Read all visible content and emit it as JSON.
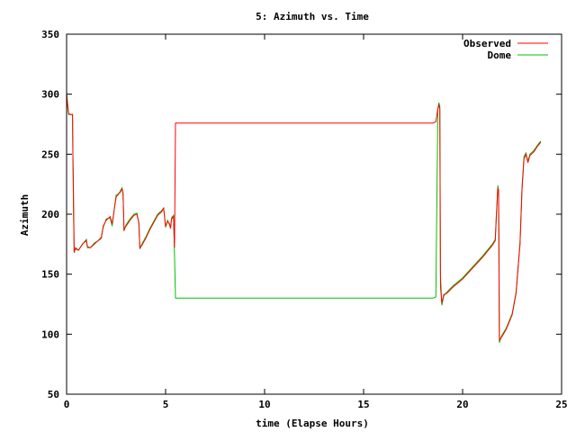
{
  "chart_data": {
    "type": "line",
    "title": "5: Azimuth vs. Time",
    "xlabel": "time (Elapse Hours)",
    "ylabel": "Azimuth",
    "xlim": [
      0,
      25
    ],
    "ylim": [
      50,
      350
    ],
    "xticks": [
      0,
      5,
      10,
      15,
      20,
      25
    ],
    "yticks": [
      50,
      100,
      150,
      200,
      250,
      300,
      350
    ],
    "grid": false,
    "legend_position": "top-right",
    "series": [
      {
        "name": "Observed",
        "color": "#ff0000",
        "points": [
          [
            0.0,
            300
          ],
          [
            0.05,
            292
          ],
          [
            0.1,
            284
          ],
          [
            0.2,
            283
          ],
          [
            0.3,
            283
          ],
          [
            0.32,
            250
          ],
          [
            0.35,
            215
          ],
          [
            0.38,
            168
          ],
          [
            0.45,
            172
          ],
          [
            0.6,
            170
          ],
          [
            0.8,
            175
          ],
          [
            1.0,
            178
          ],
          [
            1.05,
            173
          ],
          [
            1.2,
            172
          ],
          [
            1.4,
            175
          ],
          [
            1.6,
            178
          ],
          [
            1.75,
            180
          ],
          [
            1.85,
            190
          ],
          [
            2.0,
            195
          ],
          [
            2.2,
            198
          ],
          [
            2.3,
            192
          ],
          [
            2.5,
            214
          ],
          [
            2.6,
            217
          ],
          [
            2.7,
            218
          ],
          [
            2.8,
            221
          ],
          [
            2.85,
            218
          ],
          [
            2.9,
            187
          ],
          [
            3.0,
            190
          ],
          [
            3.2,
            195
          ],
          [
            3.4,
            199
          ],
          [
            3.55,
            200
          ],
          [
            3.65,
            193
          ],
          [
            3.7,
            172
          ],
          [
            3.8,
            174
          ],
          [
            4.0,
            180
          ],
          [
            4.2,
            187
          ],
          [
            4.4,
            193
          ],
          [
            4.6,
            199
          ],
          [
            4.8,
            202
          ],
          [
            4.9,
            205
          ],
          [
            4.95,
            198
          ],
          [
            5.0,
            190
          ],
          [
            5.1,
            194
          ],
          [
            5.2,
            192
          ],
          [
            5.25,
            188
          ],
          [
            5.3,
            196
          ],
          [
            5.4,
            198
          ],
          [
            5.45,
            172
          ],
          [
            5.5,
            276
          ],
          [
            6.0,
            276
          ],
          [
            10.0,
            276
          ],
          [
            15.0,
            276
          ],
          [
            18.5,
            276
          ],
          [
            18.65,
            277
          ],
          [
            18.75,
            288
          ],
          [
            18.8,
            291
          ],
          [
            18.85,
            288
          ],
          [
            18.88,
            140
          ],
          [
            18.95,
            126
          ],
          [
            19.05,
            133
          ],
          [
            19.2,
            134
          ],
          [
            19.5,
            139
          ],
          [
            20.0,
            146
          ],
          [
            20.5,
            155
          ],
          [
            21.0,
            164
          ],
          [
            21.5,
            174
          ],
          [
            21.65,
            178
          ],
          [
            21.7,
            196
          ],
          [
            21.78,
            222
          ],
          [
            21.82,
            220
          ],
          [
            21.86,
            95
          ],
          [
            21.95,
            97
          ],
          [
            22.2,
            104
          ],
          [
            22.5,
            116
          ],
          [
            22.7,
            134
          ],
          [
            22.9,
            175
          ],
          [
            23.0,
            220
          ],
          [
            23.1,
            246
          ],
          [
            23.2,
            250
          ],
          [
            23.3,
            243
          ],
          [
            23.4,
            249
          ],
          [
            23.6,
            252
          ],
          [
            23.8,
            257
          ],
          [
            23.95,
            260
          ]
        ]
      },
      {
        "name": "Dome",
        "color": "#00c000",
        "points": [
          [
            0.0,
            302
          ],
          [
            0.05,
            290
          ],
          [
            0.1,
            283
          ],
          [
            0.2,
            283
          ],
          [
            0.3,
            283
          ],
          [
            0.32,
            248
          ],
          [
            0.35,
            200
          ],
          [
            0.38,
            169
          ],
          [
            0.45,
            171
          ],
          [
            0.6,
            170
          ],
          [
            0.8,
            175
          ],
          [
            1.0,
            179
          ],
          [
            1.05,
            172
          ],
          [
            1.2,
            172
          ],
          [
            1.4,
            176
          ],
          [
            1.6,
            178
          ],
          [
            1.75,
            181
          ],
          [
            1.85,
            189
          ],
          [
            2.0,
            196
          ],
          [
            2.2,
            197
          ],
          [
            2.3,
            190
          ],
          [
            2.5,
            216
          ],
          [
            2.6,
            216
          ],
          [
            2.7,
            219
          ],
          [
            2.8,
            222
          ],
          [
            2.85,
            217
          ],
          [
            2.9,
            186
          ],
          [
            3.0,
            191
          ],
          [
            3.2,
            196
          ],
          [
            3.4,
            200
          ],
          [
            3.55,
            201
          ],
          [
            3.65,
            192
          ],
          [
            3.7,
            171
          ],
          [
            3.8,
            175
          ],
          [
            4.0,
            181
          ],
          [
            4.2,
            188
          ],
          [
            4.4,
            194
          ],
          [
            4.6,
            200
          ],
          [
            4.8,
            203
          ],
          [
            4.9,
            205
          ],
          [
            4.95,
            197
          ],
          [
            5.0,
            189
          ],
          [
            5.1,
            195
          ],
          [
            5.2,
            191
          ],
          [
            5.25,
            189
          ],
          [
            5.3,
            197
          ],
          [
            5.4,
            199
          ],
          [
            5.45,
            166
          ],
          [
            5.5,
            130
          ],
          [
            6.0,
            130
          ],
          [
            10.0,
            130
          ],
          [
            15.0,
            130
          ],
          [
            18.5,
            130
          ],
          [
            18.65,
            131
          ],
          [
            18.75,
            287
          ],
          [
            18.8,
            293
          ],
          [
            18.85,
            290
          ],
          [
            18.88,
            150
          ],
          [
            18.95,
            124
          ],
          [
            19.05,
            132
          ],
          [
            19.2,
            135
          ],
          [
            19.5,
            140
          ],
          [
            20.0,
            147
          ],
          [
            20.5,
            156
          ],
          [
            21.0,
            165
          ],
          [
            21.5,
            175
          ],
          [
            21.65,
            179
          ],
          [
            21.7,
            198
          ],
          [
            21.78,
            224
          ],
          [
            21.82,
            218
          ],
          [
            21.86,
            93
          ],
          [
            21.95,
            98
          ],
          [
            22.2,
            105
          ],
          [
            22.5,
            117
          ],
          [
            22.7,
            135
          ],
          [
            22.9,
            176
          ],
          [
            23.0,
            222
          ],
          [
            23.1,
            248
          ],
          [
            23.2,
            251
          ],
          [
            23.3,
            244
          ],
          [
            23.4,
            250
          ],
          [
            23.6,
            253
          ],
          [
            23.8,
            258
          ],
          [
            23.95,
            261
          ]
        ]
      }
    ]
  }
}
